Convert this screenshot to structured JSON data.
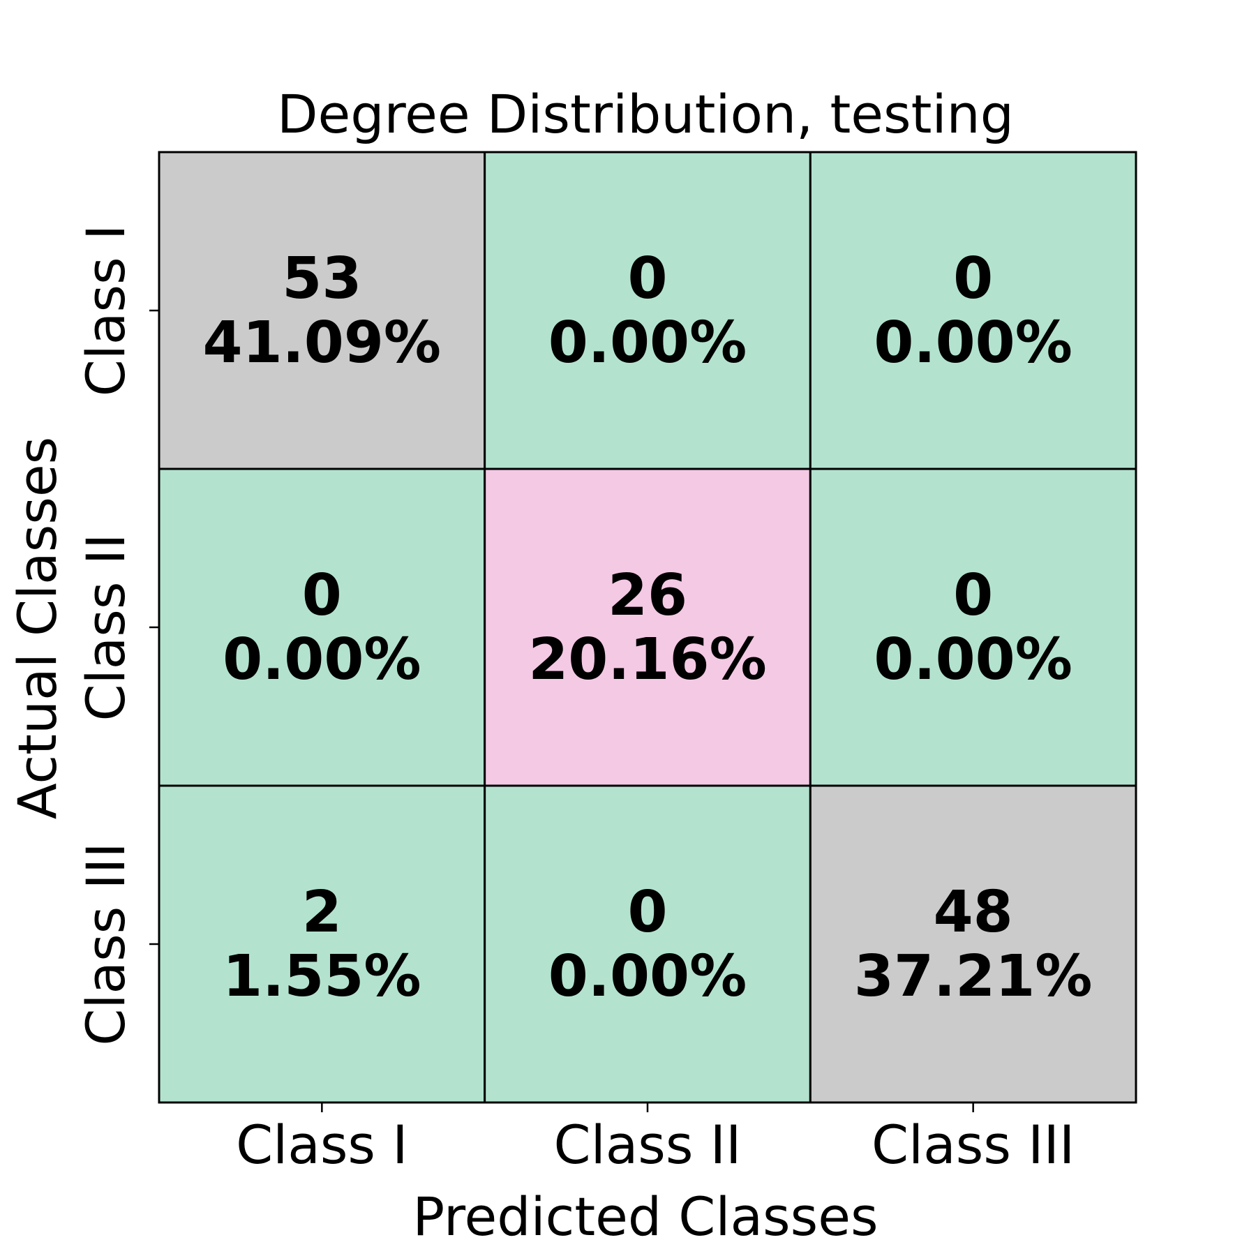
{
  "chart_data": {
    "type": "heatmap",
    "title": "Degree Distribution, testing",
    "xlabel": "Predicted Classes",
    "ylabel": "Actual Classes",
    "x_categories": [
      "Class I",
      "Class II",
      "Class III"
    ],
    "y_categories": [
      "Class I",
      "Class II",
      "Class III"
    ],
    "counts": [
      [
        53,
        0,
        0
      ],
      [
        0,
        26,
        0
      ],
      [
        2,
        0,
        48
      ]
    ],
    "percentages": [
      [
        "41.09%",
        "0.00%",
        "0.00%"
      ],
      [
        "0.00%",
        "20.16%",
        "0.00%"
      ],
      [
        "1.55%",
        "0.00%",
        "37.21%"
      ]
    ],
    "colors": {
      "correct_majority": "#cbcbcb",
      "correct_minority": "#f4c9e4",
      "incorrect": "#b3e3cf"
    },
    "cell_color_roles": [
      [
        "correct_majority",
        "incorrect",
        "incorrect"
      ],
      [
        "incorrect",
        "correct_minority",
        "incorrect"
      ],
      [
        "incorrect",
        "incorrect",
        "correct_majority"
      ]
    ]
  }
}
